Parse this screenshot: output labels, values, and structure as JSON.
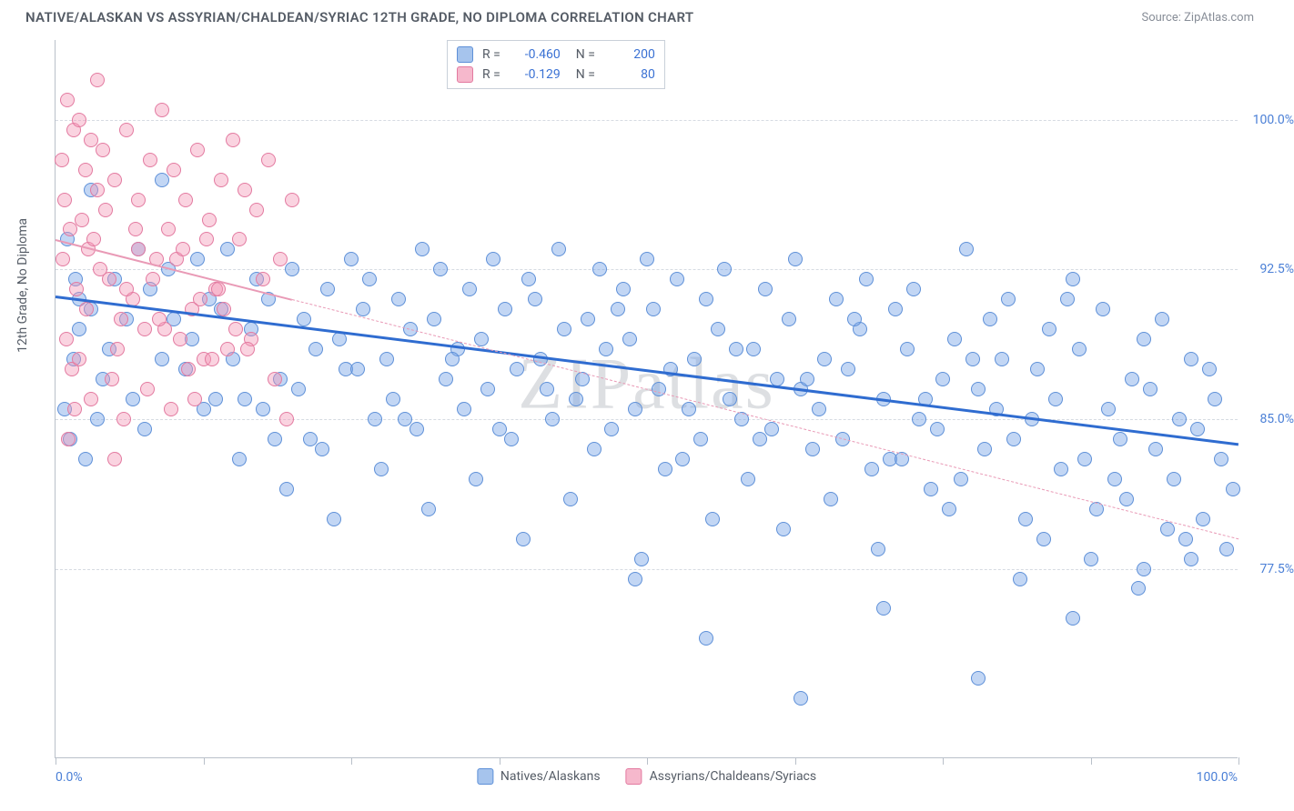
{
  "header": {
    "title": "NATIVE/ALASKAN VS ASSYRIAN/CHALDEAN/SYRIAC 12TH GRADE, NO DIPLOMA CORRELATION CHART",
    "source": "Source: ZipAtlas.com"
  },
  "watermark": "ZIPatlas",
  "chart": {
    "type": "scatter",
    "y_axis_title": "12th Grade, No Diploma",
    "xlim": [
      0,
      100
    ],
    "ylim": [
      68,
      104
    ],
    "x_min_label": "0.0%",
    "x_max_label": "100.0%",
    "background_color": "#ffffff",
    "grid_color": "#d6dbe2",
    "axis_color": "#b9c0c9",
    "marker_radius": 8,
    "marker_stroke_width": 1.3,
    "xtick_positions": [
      0,
      12.5,
      25,
      37.5,
      50,
      62.5,
      75,
      87.5,
      100
    ],
    "yticks": [
      {
        "value": 100,
        "label": "100.0%"
      },
      {
        "value": 92.5,
        "label": "92.5%"
      },
      {
        "value": 85,
        "label": "85.0%"
      },
      {
        "value": 77.5,
        "label": "77.5%"
      }
    ],
    "series": [
      {
        "name": "Natives/Alaskans",
        "fill": "rgba(120,165,230,0.45)",
        "stroke": "#5e90d8",
        "swatch_fill": "#a6c4ed",
        "swatch_border": "#5e90d8",
        "r": "-0.460",
        "n": "200",
        "trend": {
          "x1": 0,
          "y1": 91.2,
          "x2": 100,
          "y2": 83.8,
          "color": "#2f6cd0",
          "width": 3,
          "dash": "solid"
        },
        "points": [
          [
            1,
            94
          ],
          [
            2,
            91
          ],
          [
            1.5,
            88
          ],
          [
            0.8,
            85.5
          ],
          [
            1.2,
            84
          ],
          [
            2.5,
            83
          ],
          [
            1.7,
            92
          ],
          [
            3,
            90.5
          ],
          [
            4,
            87
          ],
          [
            3.5,
            85
          ],
          [
            2,
            89.5
          ],
          [
            5,
            92
          ],
          [
            4.5,
            88.5
          ],
          [
            6,
            90
          ],
          [
            7,
            93.5
          ],
          [
            6.5,
            86
          ],
          [
            8,
            91.5
          ],
          [
            7.5,
            84.5
          ],
          [
            9,
            88
          ],
          [
            10,
            90
          ],
          [
            9.5,
            92.5
          ],
          [
            11,
            87.5
          ],
          [
            12,
            93
          ],
          [
            11.5,
            89
          ],
          [
            13,
            91
          ],
          [
            12.5,
            85.5
          ],
          [
            14,
            90.5
          ],
          [
            15,
            88
          ],
          [
            14.5,
            93.5
          ],
          [
            16,
            86
          ],
          [
            17,
            92
          ],
          [
            16.5,
            89.5
          ],
          [
            18,
            91
          ],
          [
            19,
            87
          ],
          [
            18.5,
            84
          ],
          [
            20,
            92.5
          ],
          [
            21,
            90
          ],
          [
            20.5,
            86.5
          ],
          [
            22,
            88.5
          ],
          [
            23,
            91.5
          ],
          [
            22.5,
            83.5
          ],
          [
            24,
            89
          ],
          [
            25,
            93
          ],
          [
            24.5,
            87.5
          ],
          [
            26,
            90.5
          ],
          [
            27,
            85
          ],
          [
            26.5,
            92
          ],
          [
            28,
            88
          ],
          [
            29,
            91
          ],
          [
            28.5,
            86
          ],
          [
            30,
            89.5
          ],
          [
            31,
            93.5
          ],
          [
            30.5,
            84.5
          ],
          [
            32,
            90
          ],
          [
            33,
            87
          ],
          [
            32.5,
            92.5
          ],
          [
            34,
            88.5
          ],
          [
            35,
            91.5
          ],
          [
            34.5,
            85.5
          ],
          [
            36,
            89
          ],
          [
            37,
            93
          ],
          [
            36.5,
            86.5
          ],
          [
            38,
            90.5
          ],
          [
            39,
            87.5
          ],
          [
            38.5,
            84
          ],
          [
            40,
            92
          ],
          [
            41,
            88
          ],
          [
            40.5,
            91
          ],
          [
            42,
            85
          ],
          [
            43,
            89.5
          ],
          [
            42.5,
            93.5
          ],
          [
            44,
            86
          ],
          [
            45,
            90
          ],
          [
            44.5,
            87
          ],
          [
            46,
            92.5
          ],
          [
            47,
            84.5
          ],
          [
            46.5,
            88.5
          ],
          [
            48,
            91.5
          ],
          [
            49,
            85.5
          ],
          [
            48.5,
            89
          ],
          [
            50,
            93
          ],
          [
            51,
            86.5
          ],
          [
            50.5,
            90.5
          ],
          [
            52,
            87.5
          ],
          [
            53,
            83
          ],
          [
            52.5,
            92
          ],
          [
            54,
            88
          ],
          [
            55,
            91
          ],
          [
            54.5,
            84
          ],
          [
            56,
            89.5
          ],
          [
            57,
            86
          ],
          [
            56.5,
            92.5
          ],
          [
            58,
            85
          ],
          [
            59,
            88.5
          ],
          [
            58.5,
            82
          ],
          [
            60,
            91.5
          ],
          [
            61,
            87
          ],
          [
            60.5,
            84.5
          ],
          [
            62,
            90
          ],
          [
            63,
            86.5
          ],
          [
            62.5,
            93
          ],
          [
            64,
            83.5
          ],
          [
            65,
            88
          ],
          [
            64.5,
            85.5
          ],
          [
            66,
            91
          ],
          [
            67,
            87.5
          ],
          [
            66.5,
            84
          ],
          [
            68,
            89.5
          ],
          [
            69,
            82.5
          ],
          [
            68.5,
            92
          ],
          [
            70,
            86
          ],
          [
            71,
            90.5
          ],
          [
            70.5,
            83
          ],
          [
            72,
            88.5
          ],
          [
            73,
            85
          ],
          [
            72.5,
            91.5
          ],
          [
            74,
            81.5
          ],
          [
            75,
            87
          ],
          [
            74.5,
            84.5
          ],
          [
            76,
            89
          ],
          [
            77,
            93.5
          ],
          [
            76.5,
            82
          ],
          [
            78,
            86.5
          ],
          [
            79,
            90
          ],
          [
            78.5,
            83.5
          ],
          [
            80,
            88
          ],
          [
            81,
            84
          ],
          [
            80.5,
            91
          ],
          [
            82,
            80
          ],
          [
            83,
            87.5
          ],
          [
            82.5,
            85
          ],
          [
            84,
            89.5
          ],
          [
            85,
            82.5
          ],
          [
            84.5,
            86
          ],
          [
            86,
            92
          ],
          [
            87,
            83
          ],
          [
            86.5,
            88.5
          ],
          [
            88,
            80.5
          ],
          [
            89,
            85.5
          ],
          [
            88.5,
            90.5
          ],
          [
            90,
            84
          ],
          [
            91,
            87
          ],
          [
            90.5,
            81
          ],
          [
            92,
            89
          ],
          [
            93,
            83.5
          ],
          [
            92.5,
            86.5
          ],
          [
            94,
            79.5
          ],
          [
            95,
            85
          ],
          [
            94.5,
            82
          ],
          [
            96,
            88
          ],
          [
            97,
            80
          ],
          [
            96.5,
            84.5
          ],
          [
            98,
            86
          ],
          [
            99,
            78.5
          ],
          [
            98.5,
            83
          ],
          [
            99.5,
            81.5
          ],
          [
            97.5,
            87.5
          ],
          [
            95.5,
            79
          ],
          [
            93.5,
            90
          ],
          [
            91.5,
            76.5
          ],
          [
            89.5,
            82
          ],
          [
            87.5,
            78
          ],
          [
            85.5,
            91
          ],
          [
            83.5,
            79
          ],
          [
            81.5,
            77
          ],
          [
            79.5,
            85.5
          ],
          [
            77.5,
            88
          ],
          [
            75.5,
            80.5
          ],
          [
            73.5,
            86
          ],
          [
            71.5,
            83
          ],
          [
            69.5,
            78.5
          ],
          [
            67.5,
            90
          ],
          [
            65.5,
            81
          ],
          [
            63.5,
            87
          ],
          [
            61.5,
            79.5
          ],
          [
            59.5,
            84
          ],
          [
            57.5,
            88.5
          ],
          [
            55.5,
            80
          ],
          [
            53.5,
            85.5
          ],
          [
            51.5,
            82.5
          ],
          [
            49.5,
            78
          ],
          [
            47.5,
            90.5
          ],
          [
            45.5,
            83.5
          ],
          [
            43.5,
            81
          ],
          [
            41.5,
            86.5
          ],
          [
            39.5,
            79
          ],
          [
            37.5,
            84.5
          ],
          [
            35.5,
            82
          ],
          [
            33.5,
            88
          ],
          [
            31.5,
            80.5
          ],
          [
            29.5,
            85
          ],
          [
            27.5,
            82.5
          ],
          [
            25.5,
            87.5
          ],
          [
            23.5,
            80
          ],
          [
            21.5,
            84
          ],
          [
            19.5,
            81.5
          ],
          [
            17.5,
            85.5
          ],
          [
            15.5,
            83
          ],
          [
            13.5,
            86
          ],
          [
            78,
            72
          ],
          [
            63,
            71
          ],
          [
            49,
            77
          ],
          [
            70,
            75.5
          ],
          [
            86,
            75
          ],
          [
            92,
            77.5
          ],
          [
            96,
            78
          ],
          [
            55,
            74
          ],
          [
            9,
            97
          ],
          [
            3,
            96.5
          ]
        ]
      },
      {
        "name": "Assyrians/Chaldeans/Syriacs",
        "fill": "rgba(242,150,180,0.42)",
        "stroke": "#e37aa0",
        "swatch_fill": "#f6b8cc",
        "swatch_border": "#e37aa0",
        "r": "-0.129",
        "n": "80",
        "trend": {
          "x1": 0,
          "y1": 94.0,
          "x2": 100,
          "y2": 79.0,
          "color": "#e99ab6",
          "width": 1.5,
          "dash": "dashed",
          "solid_until": 20
        },
        "points": [
          [
            0.5,
            98
          ],
          [
            1,
            101
          ],
          [
            1.5,
            99.5
          ],
          [
            0.8,
            96
          ],
          [
            2,
            100
          ],
          [
            1.2,
            94.5
          ],
          [
            2.5,
            97.5
          ],
          [
            0.6,
            93
          ],
          [
            3,
            99
          ],
          [
            1.8,
            91.5
          ],
          [
            3.5,
            96.5
          ],
          [
            0.9,
            89
          ],
          [
            4,
            98.5
          ],
          [
            2.2,
            95
          ],
          [
            4.5,
            92
          ],
          [
            1.4,
            87.5
          ],
          [
            5,
            97
          ],
          [
            2.8,
            93.5
          ],
          [
            5.5,
            90
          ],
          [
            1.6,
            85.5
          ],
          [
            6,
            99.5
          ],
          [
            3.2,
            94
          ],
          [
            6.5,
            91
          ],
          [
            2,
            88
          ],
          [
            7,
            96
          ],
          [
            3.8,
            92.5
          ],
          [
            7.5,
            89.5
          ],
          [
            1.1,
            84
          ],
          [
            8,
            98
          ],
          [
            4.2,
            95.5
          ],
          [
            8.5,
            93
          ],
          [
            2.6,
            90.5
          ],
          [
            9,
            100.5
          ],
          [
            5.2,
            88.5
          ],
          [
            9.5,
            94.5
          ],
          [
            3,
            86
          ],
          [
            10,
            97.5
          ],
          [
            6,
            91.5
          ],
          [
            10.5,
            89
          ],
          [
            4.8,
            87
          ],
          [
            11,
            96
          ],
          [
            7,
            93.5
          ],
          [
            11.5,
            90.5
          ],
          [
            5.8,
            85
          ],
          [
            12,
            98.5
          ],
          [
            8.2,
            92
          ],
          [
            12.5,
            88
          ],
          [
            6.8,
            94.5
          ],
          [
            13,
            95
          ],
          [
            9.2,
            89.5
          ],
          [
            13.5,
            91.5
          ],
          [
            7.8,
            86.5
          ],
          [
            14,
            97
          ],
          [
            10.2,
            93
          ],
          [
            14.5,
            88.5
          ],
          [
            8.8,
            90
          ],
          [
            15,
            99
          ],
          [
            11.2,
            87.5
          ],
          [
            15.5,
            94
          ],
          [
            9.8,
            85.5
          ],
          [
            16,
            96.5
          ],
          [
            12.2,
            91
          ],
          [
            16.5,
            89
          ],
          [
            10.8,
            93.5
          ],
          [
            17,
            95.5
          ],
          [
            13.2,
            88
          ],
          [
            17.5,
            92
          ],
          [
            11.8,
            86
          ],
          [
            18,
            98
          ],
          [
            14.2,
            90.5
          ],
          [
            18.5,
            87
          ],
          [
            12.8,
            94
          ],
          [
            19,
            93
          ],
          [
            15.2,
            89.5
          ],
          [
            19.5,
            85
          ],
          [
            13.8,
            91.5
          ],
          [
            20,
            96
          ],
          [
            16.2,
            88.5
          ],
          [
            3.5,
            102
          ],
          [
            5,
            83
          ]
        ]
      }
    ]
  }
}
